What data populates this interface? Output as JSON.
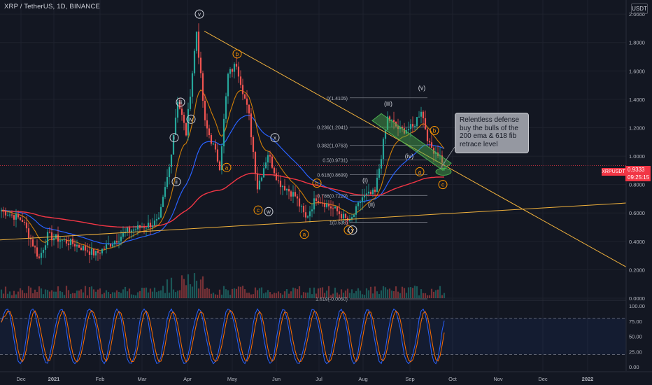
{
  "header": {
    "title": "XRP / TetherUS, 1D, BINANCE",
    "unit": "USDT"
  },
  "price_label": {
    "symbol": "XRPUSDT",
    "value": "0.9333",
    "countdown": "09:25:15"
  },
  "tip": "Relentless defense buy the bulls of the 200 ema & 618 fib retrace level",
  "colors": {
    "bg": "#131722",
    "up": "#26a69a",
    "down": "#ef5350",
    "trend": "#f0b13c",
    "ema_short": "#2962ff",
    "ema_long": "#f23645",
    "stoch_k": "#2962ff",
    "stoch_d": "#ff6d00",
    "highlight": "#4caf50"
  },
  "chart_data": {
    "type": "candlestick",
    "x_ticks": [
      "Dec",
      "2021",
      "Feb",
      "Mar",
      "Apr",
      "May",
      "Jun",
      "Jul",
      "Aug",
      "Sep",
      "Oct",
      "Nov",
      "Dec",
      "2022"
    ],
    "y_ticks": [
      "2.0000",
      "1.8000",
      "1.6000",
      "1.4000",
      "1.2000",
      "1.0000",
      "0.8000",
      "0.6000",
      "0.4000",
      "0.2000",
      "0.0000"
    ],
    "ylim": [
      0,
      2.05
    ],
    "stoch_ticks": [
      "100.00",
      "75.00",
      "50.00",
      "25.00",
      "0.00"
    ],
    "fib_levels": [
      {
        "label": "0(1.4105)",
        "value": 1.4105
      },
      {
        "label": "0.236(1.2041)",
        "value": 1.2041
      },
      {
        "label": "0.382(1.0763)",
        "value": 1.0763
      },
      {
        "label": "0.5(0.9731)",
        "value": 0.9731
      },
      {
        "label": "0.618(0.8699)",
        "value": 0.8699
      },
      {
        "label": "0.786(0.7229)",
        "value": 0.7229
      },
      {
        "label": "1(0.535)",
        "value": 0.535
      },
      {
        "label": "1.618(-0.0050)",
        "value": -0.005
      }
    ],
    "ohlc_month_close": [
      0.52,
      0.23,
      0.5,
      0.43,
      0.56,
      1.64,
      0.94,
      0.84,
      0.65,
      1.22,
      1.24,
      0.93
    ],
    "wave_labels": [
      {
        "t": "v",
        "time": 93,
        "price": 2.0,
        "style": "white"
      },
      {
        "t": "iii",
        "time": 84,
        "price": 1.38,
        "style": "white"
      },
      {
        "t": "iv",
        "time": 89,
        "price": 1.26,
        "style": "white"
      },
      {
        "t": "i",
        "time": 81,
        "price": 1.13,
        "style": "white"
      },
      {
        "t": "ii",
        "time": 82,
        "price": 0.82,
        "style": "white"
      },
      {
        "t": "b",
        "time": 111,
        "price": 1.72,
        "style": "orange"
      },
      {
        "t": "a",
        "time": 106,
        "price": 0.92,
        "style": "orange"
      },
      {
        "t": "x",
        "time": 129,
        "price": 1.13,
        "style": "white"
      },
      {
        "t": "c",
        "time": 121,
        "price": 0.62,
        "style": "orange"
      },
      {
        "t": "w",
        "time": 126,
        "price": 0.61,
        "style": "white"
      },
      {
        "t": "b",
        "time": 149,
        "price": 0.81,
        "style": "orange"
      },
      {
        "t": "a",
        "time": 143,
        "price": 0.45,
        "style": "orange"
      },
      {
        "t": "c",
        "time": 164,
        "price": 0.48,
        "style": "orange"
      },
      {
        "t": "y",
        "time": 166,
        "price": 0.48,
        "style": "white"
      },
      {
        "t": "(i)",
        "time": 172,
        "price": 0.83,
        "style": "plain"
      },
      {
        "t": "(ii)",
        "time": 175,
        "price": 0.66,
        "style": "plain"
      },
      {
        "t": "(iii)",
        "time": 183,
        "price": 1.37,
        "style": "plain"
      },
      {
        "t": "(iv)",
        "time": 193,
        "price": 1.0,
        "style": "plain"
      },
      {
        "t": "(v)",
        "time": 199,
        "price": 1.48,
        "style": "plain"
      },
      {
        "t": "b",
        "time": 205,
        "price": 1.18,
        "style": "orange"
      },
      {
        "t": "a",
        "time": 198,
        "price": 0.89,
        "style": "orange"
      },
      {
        "t": "c",
        "time": 209,
        "price": 0.8,
        "style": "orange"
      }
    ]
  }
}
